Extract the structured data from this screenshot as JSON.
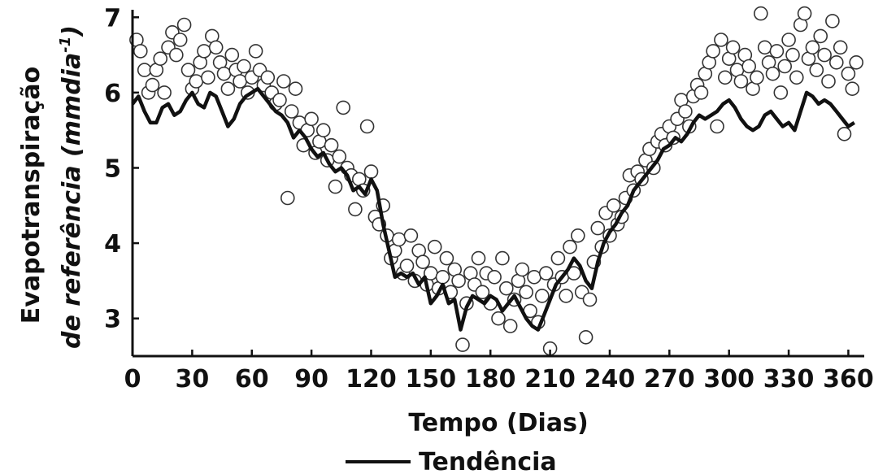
{
  "chart_data": {
    "type": "scatter",
    "title": "",
    "xlabel": "Tempo (Dias)",
    "ylabel_line1": "Evapotranspiração",
    "ylabel_line2": "de referência (mmdia",
    "ylabel_sup": "-1",
    "ylabel_close": ")",
    "xlim": [
      0,
      368
    ],
    "ylim": [
      2.5,
      7.1
    ],
    "xticks": [
      0,
      30,
      60,
      90,
      120,
      150,
      180,
      210,
      240,
      270,
      300,
      330,
      360
    ],
    "xtick_labels": [
      "0",
      "30",
      "60",
      "90",
      "120",
      "150",
      "180",
      "210",
      "240",
      "270",
      "300",
      "330",
      "360"
    ],
    "yticks": [
      3,
      4,
      5,
      6,
      7
    ],
    "ytick_labels": [
      "3",
      "4",
      "5",
      "6",
      "7"
    ],
    "grid": false,
    "legend_position": "bottom",
    "series": [
      {
        "kind": "scatter",
        "color": "#333333",
        "fill": "#ffffff",
        "points": [
          [
            2,
            6.7
          ],
          [
            4,
            6.55
          ],
          [
            6,
            6.3
          ],
          [
            8,
            6.0
          ],
          [
            10,
            6.1
          ],
          [
            12,
            6.3
          ],
          [
            14,
            6.45
          ],
          [
            16,
            6.0
          ],
          [
            18,
            6.6
          ],
          [
            20,
            6.8
          ],
          [
            22,
            6.5
          ],
          [
            24,
            6.7
          ],
          [
            26,
            6.9
          ],
          [
            28,
            6.3
          ],
          [
            30,
            6.05
          ],
          [
            32,
            6.15
          ],
          [
            34,
            6.4
          ],
          [
            36,
            6.55
          ],
          [
            38,
            6.2
          ],
          [
            40,
            6.75
          ],
          [
            42,
            6.6
          ],
          [
            44,
            6.4
          ],
          [
            46,
            6.25
          ],
          [
            48,
            6.05
          ],
          [
            50,
            6.5
          ],
          [
            52,
            6.3
          ],
          [
            54,
            6.15
          ],
          [
            56,
            6.35
          ],
          [
            58,
            6.0
          ],
          [
            60,
            6.2
          ],
          [
            62,
            6.55
          ],
          [
            64,
            6.3
          ],
          [
            66,
            6.1
          ],
          [
            68,
            6.2
          ],
          [
            70,
            6.0
          ],
          [
            72,
            5.85
          ],
          [
            74,
            5.9
          ],
          [
            76,
            6.15
          ],
          [
            78,
            4.6
          ],
          [
            80,
            5.75
          ],
          [
            82,
            6.05
          ],
          [
            84,
            5.6
          ],
          [
            86,
            5.3
          ],
          [
            88,
            5.5
          ],
          [
            90,
            5.65
          ],
          [
            92,
            5.2
          ],
          [
            94,
            5.35
          ],
          [
            96,
            5.5
          ],
          [
            98,
            5.1
          ],
          [
            100,
            5.3
          ],
          [
            102,
            4.75
          ],
          [
            104,
            5.15
          ],
          [
            106,
            5.8
          ],
          [
            108,
            5.0
          ],
          [
            110,
            4.9
          ],
          [
            112,
            4.45
          ],
          [
            114,
            4.85
          ],
          [
            116,
            4.7
          ],
          [
            118,
            5.55
          ],
          [
            120,
            4.95
          ],
          [
            122,
            4.35
          ],
          [
            124,
            4.25
          ],
          [
            126,
            4.5
          ],
          [
            128,
            4.1
          ],
          [
            130,
            3.8
          ],
          [
            132,
            3.9
          ],
          [
            134,
            4.05
          ],
          [
            136,
            3.6
          ],
          [
            138,
            3.7
          ],
          [
            140,
            4.1
          ],
          [
            142,
            3.5
          ],
          [
            144,
            3.9
          ],
          [
            146,
            3.75
          ],
          [
            148,
            3.45
          ],
          [
            150,
            3.6
          ],
          [
            152,
            3.95
          ],
          [
            154,
            3.4
          ],
          [
            156,
            3.55
          ],
          [
            158,
            3.8
          ],
          [
            160,
            3.35
          ],
          [
            162,
            3.65
          ],
          [
            164,
            3.5
          ],
          [
            166,
            2.65
          ],
          [
            168,
            3.2
          ],
          [
            170,
            3.6
          ],
          [
            172,
            3.45
          ],
          [
            174,
            3.8
          ],
          [
            176,
            3.35
          ],
          [
            178,
            3.6
          ],
          [
            180,
            3.2
          ],
          [
            182,
            3.55
          ],
          [
            184,
            3.0
          ],
          [
            186,
            3.8
          ],
          [
            188,
            3.4
          ],
          [
            190,
            2.9
          ],
          [
            192,
            3.25
          ],
          [
            194,
            3.5
          ],
          [
            196,
            3.65
          ],
          [
            198,
            3.35
          ],
          [
            200,
            3.1
          ],
          [
            202,
            3.55
          ],
          [
            204,
            2.95
          ],
          [
            206,
            3.3
          ],
          [
            208,
            3.6
          ],
          [
            210,
            2.6
          ],
          [
            212,
            3.45
          ],
          [
            214,
            3.8
          ],
          [
            216,
            3.55
          ],
          [
            218,
            3.3
          ],
          [
            220,
            3.95
          ],
          [
            222,
            3.6
          ],
          [
            224,
            4.1
          ],
          [
            226,
            3.35
          ],
          [
            228,
            2.75
          ],
          [
            230,
            3.25
          ],
          [
            232,
            3.75
          ],
          [
            234,
            4.2
          ],
          [
            236,
            3.95
          ],
          [
            238,
            4.4
          ],
          [
            240,
            4.1
          ],
          [
            242,
            4.5
          ],
          [
            244,
            4.25
          ],
          [
            246,
            4.35
          ],
          [
            248,
            4.6
          ],
          [
            250,
            4.9
          ],
          [
            252,
            4.7
          ],
          [
            254,
            4.95
          ],
          [
            256,
            4.85
          ],
          [
            258,
            5.1
          ],
          [
            260,
            5.25
          ],
          [
            262,
            5.0
          ],
          [
            264,
            5.35
          ],
          [
            266,
            5.45
          ],
          [
            268,
            5.3
          ],
          [
            270,
            5.55
          ],
          [
            272,
            5.4
          ],
          [
            274,
            5.65
          ],
          [
            276,
            5.9
          ],
          [
            278,
            5.75
          ],
          [
            280,
            5.55
          ],
          [
            282,
            5.95
          ],
          [
            284,
            6.1
          ],
          [
            286,
            6.0
          ],
          [
            288,
            6.25
          ],
          [
            290,
            6.4
          ],
          [
            292,
            6.55
          ],
          [
            294,
            5.55
          ],
          [
            296,
            6.7
          ],
          [
            298,
            6.2
          ],
          [
            300,
            6.45
          ],
          [
            302,
            6.6
          ],
          [
            304,
            6.3
          ],
          [
            306,
            6.15
          ],
          [
            308,
            6.5
          ],
          [
            310,
            6.35
          ],
          [
            312,
            6.05
          ],
          [
            314,
            6.2
          ],
          [
            316,
            7.05
          ],
          [
            318,
            6.6
          ],
          [
            320,
            6.4
          ],
          [
            322,
            6.25
          ],
          [
            324,
            6.55
          ],
          [
            326,
            6.0
          ],
          [
            328,
            6.35
          ],
          [
            330,
            6.7
          ],
          [
            332,
            6.5
          ],
          [
            334,
            6.2
          ],
          [
            336,
            6.9
          ],
          [
            338,
            7.05
          ],
          [
            340,
            6.45
          ],
          [
            342,
            6.6
          ],
          [
            344,
            6.3
          ],
          [
            346,
            6.75
          ],
          [
            348,
            6.5
          ],
          [
            350,
            6.15
          ],
          [
            352,
            6.95
          ],
          [
            354,
            6.4
          ],
          [
            356,
            6.6
          ],
          [
            358,
            5.45
          ],
          [
            360,
            6.25
          ],
          [
            362,
            6.05
          ],
          [
            364,
            6.4
          ]
        ]
      },
      {
        "kind": "line",
        "name": "Tendência",
        "color": "#111111",
        "points": [
          [
            0,
            5.85
          ],
          [
            3,
            5.95
          ],
          [
            6,
            5.75
          ],
          [
            9,
            5.6
          ],
          [
            12,
            5.6
          ],
          [
            15,
            5.8
          ],
          [
            18,
            5.85
          ],
          [
            21,
            5.7
          ],
          [
            24,
            5.75
          ],
          [
            27,
            5.9
          ],
          [
            30,
            6.0
          ],
          [
            33,
            5.85
          ],
          [
            36,
            5.8
          ],
          [
            39,
            6.0
          ],
          [
            42,
            5.95
          ],
          [
            45,
            5.75
          ],
          [
            48,
            5.55
          ],
          [
            51,
            5.65
          ],
          [
            54,
            5.85
          ],
          [
            57,
            5.95
          ],
          [
            60,
            6.0
          ],
          [
            63,
            6.05
          ],
          [
            66,
            5.95
          ],
          [
            69,
            5.85
          ],
          [
            72,
            5.75
          ],
          [
            75,
            5.7
          ],
          [
            78,
            5.6
          ],
          [
            81,
            5.4
          ],
          [
            84,
            5.5
          ],
          [
            87,
            5.4
          ],
          [
            90,
            5.25
          ],
          [
            93,
            5.15
          ],
          [
            96,
            5.2
          ],
          [
            99,
            5.05
          ],
          [
            102,
            4.95
          ],
          [
            105,
            5.0
          ],
          [
            108,
            4.9
          ],
          [
            111,
            4.7
          ],
          [
            114,
            4.75
          ],
          [
            117,
            4.65
          ],
          [
            120,
            4.85
          ],
          [
            123,
            4.7
          ],
          [
            126,
            4.25
          ],
          [
            129,
            3.9
          ],
          [
            132,
            3.55
          ],
          [
            135,
            3.6
          ],
          [
            138,
            3.55
          ],
          [
            141,
            3.6
          ],
          [
            144,
            3.45
          ],
          [
            147,
            3.55
          ],
          [
            150,
            3.2
          ],
          [
            153,
            3.3
          ],
          [
            156,
            3.45
          ],
          [
            159,
            3.2
          ],
          [
            162,
            3.25
          ],
          [
            165,
            2.85
          ],
          [
            168,
            3.15
          ],
          [
            171,
            3.3
          ],
          [
            174,
            3.25
          ],
          [
            177,
            3.2
          ],
          [
            180,
            3.3
          ],
          [
            183,
            3.25
          ],
          [
            186,
            3.1
          ],
          [
            189,
            3.2
          ],
          [
            192,
            3.3
          ],
          [
            195,
            3.15
          ],
          [
            198,
            3.0
          ],
          [
            201,
            2.9
          ],
          [
            204,
            2.85
          ],
          [
            207,
            3.05
          ],
          [
            210,
            3.25
          ],
          [
            213,
            3.45
          ],
          [
            216,
            3.55
          ],
          [
            219,
            3.65
          ],
          [
            222,
            3.8
          ],
          [
            225,
            3.7
          ],
          [
            228,
            3.5
          ],
          [
            231,
            3.4
          ],
          [
            234,
            3.75
          ],
          [
            237,
            4.0
          ],
          [
            240,
            4.15
          ],
          [
            243,
            4.25
          ],
          [
            246,
            4.4
          ],
          [
            249,
            4.5
          ],
          [
            252,
            4.7
          ],
          [
            255,
            4.8
          ],
          [
            258,
            4.9
          ],
          [
            261,
            5.0
          ],
          [
            264,
            5.1
          ],
          [
            267,
            5.25
          ],
          [
            270,
            5.3
          ],
          [
            273,
            5.4
          ],
          [
            276,
            5.35
          ],
          [
            279,
            5.45
          ],
          [
            282,
            5.6
          ],
          [
            285,
            5.7
          ],
          [
            288,
            5.65
          ],
          [
            291,
            5.7
          ],
          [
            294,
            5.75
          ],
          [
            297,
            5.85
          ],
          [
            300,
            5.9
          ],
          [
            303,
            5.8
          ],
          [
            306,
            5.65
          ],
          [
            309,
            5.55
          ],
          [
            312,
            5.5
          ],
          [
            315,
            5.55
          ],
          [
            318,
            5.7
          ],
          [
            321,
            5.75
          ],
          [
            324,
            5.65
          ],
          [
            327,
            5.55
          ],
          [
            330,
            5.6
          ],
          [
            333,
            5.5
          ],
          [
            336,
            5.75
          ],
          [
            339,
            6.0
          ],
          [
            342,
            5.95
          ],
          [
            345,
            5.85
          ],
          [
            348,
            5.9
          ],
          [
            351,
            5.85
          ],
          [
            354,
            5.75
          ],
          [
            357,
            5.65
          ],
          [
            360,
            5.55
          ],
          [
            363,
            5.6
          ]
        ]
      }
    ]
  }
}
